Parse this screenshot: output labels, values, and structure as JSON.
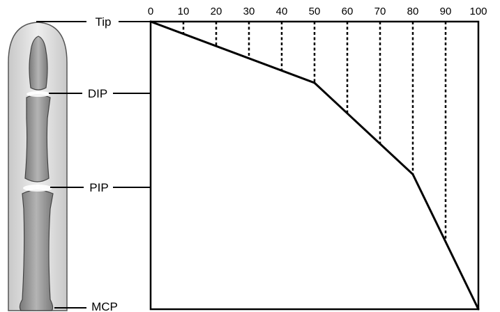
{
  "joint_labels": [
    {
      "label": "Tip"
    },
    {
      "label": "DIP"
    },
    {
      "label": "PIP"
    },
    {
      "label": "MCP"
    }
  ],
  "scale_ticks": [
    "0",
    "10",
    "20",
    "30",
    "40",
    "50",
    "60",
    "70",
    "80",
    "90",
    "100"
  ],
  "chart_data": {
    "type": "line",
    "x": [
      0,
      50,
      80,
      100
    ],
    "xlim": [
      0,
      100
    ],
    "xticks": [
      0,
      10,
      20,
      30,
      40,
      50,
      60,
      70,
      80,
      90,
      100
    ],
    "y_categories": [
      "Tip",
      "DIP",
      "PIP",
      "MCP"
    ],
    "y_positions": [
      0,
      0.23,
      0.53,
      1.0
    ],
    "profile_depth": [
      0,
      0.213,
      0.531,
      1.0
    ],
    "title": "",
    "xlabel": "",
    "ylabel": ""
  },
  "colors": {
    "line": "#000000",
    "bone": "#9a9a9a",
    "finger_skin": "#dcdcdc"
  }
}
